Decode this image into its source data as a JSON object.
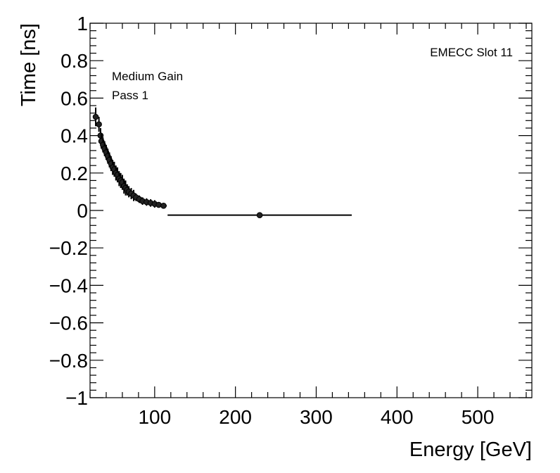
{
  "chart_data": {
    "type": "scatter",
    "title": "",
    "xlabel": "Energy [GeV]",
    "ylabel": "Time [ns]",
    "xlim": [
      20,
      567
    ],
    "ylim": [
      -1,
      1
    ],
    "xticks": [
      100,
      200,
      300,
      400,
      500
    ],
    "xtick_labels": [
      "100",
      "200",
      "300",
      "400",
      "500"
    ],
    "yticks": [
      -1,
      -0.8,
      -0.6,
      -0.4,
      -0.2,
      0,
      0.2,
      0.4,
      0.6,
      0.8,
      1
    ],
    "ytick_labels": [
      "−1",
      "−0.8",
      "−0.6",
      "−0.4",
      "−0.2",
      "0",
      "0.2",
      "0.4",
      "0.6",
      "0.8",
      "1"
    ],
    "grid": false,
    "annotations": {
      "top_right": "EMECC Slot 11",
      "line1": "Medium Gain",
      "line2": "Pass 1"
    },
    "series": [
      {
        "name": "Medium Gain Pass 1",
        "points": [
          {
            "x": 27,
            "y": 0.5,
            "xerr": 2,
            "yerr": 0.05
          },
          {
            "x": 31,
            "y": 0.46,
            "xerr": 1,
            "yerr": 0.04
          },
          {
            "x": 33,
            "y": 0.4,
            "xerr": 1,
            "yerr": 0.04
          },
          {
            "x": 34,
            "y": 0.37,
            "xerr": 1,
            "yerr": 0.04
          },
          {
            "x": 36,
            "y": 0.35,
            "xerr": 1,
            "yerr": 0.04
          },
          {
            "x": 38,
            "y": 0.33,
            "xerr": 1,
            "yerr": 0.04
          },
          {
            "x": 40,
            "y": 0.31,
            "xerr": 1,
            "yerr": 0.04
          },
          {
            "x": 42,
            "y": 0.29,
            "xerr": 1,
            "yerr": 0.04
          },
          {
            "x": 44,
            "y": 0.27,
            "xerr": 1,
            "yerr": 0.04
          },
          {
            "x": 46,
            "y": 0.25,
            "xerr": 1,
            "yerr": 0.04
          },
          {
            "x": 48,
            "y": 0.23,
            "xerr": 1,
            "yerr": 0.04
          },
          {
            "x": 50,
            "y": 0.22,
            "xerr": 1,
            "yerr": 0.04
          },
          {
            "x": 52,
            "y": 0.2,
            "xerr": 1,
            "yerr": 0.04
          },
          {
            "x": 54,
            "y": 0.19,
            "xerr": 1,
            "yerr": 0.04
          },
          {
            "x": 56,
            "y": 0.17,
            "xerr": 1,
            "yerr": 0.04
          },
          {
            "x": 58,
            "y": 0.16,
            "xerr": 1,
            "yerr": 0.04
          },
          {
            "x": 60,
            "y": 0.15,
            "xerr": 1,
            "yerr": 0.04
          },
          {
            "x": 62,
            "y": 0.13,
            "xerr": 1,
            "yerr": 0.04
          },
          {
            "x": 64,
            "y": 0.12,
            "xerr": 1,
            "yerr": 0.04
          },
          {
            "x": 66,
            "y": 0.11,
            "xerr": 1,
            "yerr": 0.03
          },
          {
            "x": 68,
            "y": 0.1,
            "xerr": 1,
            "yerr": 0.03
          },
          {
            "x": 71,
            "y": 0.09,
            "xerr": 1,
            "yerr": 0.03
          },
          {
            "x": 74,
            "y": 0.08,
            "xerr": 1,
            "yerr": 0.03
          },
          {
            "x": 77,
            "y": 0.07,
            "xerr": 1,
            "yerr": 0.02
          },
          {
            "x": 81,
            "y": 0.06,
            "xerr": 2,
            "yerr": 0.02
          },
          {
            "x": 85,
            "y": 0.05,
            "xerr": 2,
            "yerr": 0.02
          },
          {
            "x": 90,
            "y": 0.045,
            "xerr": 2,
            "yerr": 0.02
          },
          {
            "x": 95,
            "y": 0.04,
            "xerr": 2,
            "yerr": 0.02
          },
          {
            "x": 100,
            "y": 0.035,
            "xerr": 2,
            "yerr": 0.02
          },
          {
            "x": 105,
            "y": 0.03,
            "xerr": 2,
            "yerr": 0.015
          },
          {
            "x": 111,
            "y": 0.025,
            "xerr": 4,
            "yerr": 0.015
          },
          {
            "x": 230,
            "y": -0.025,
            "xerr": 114,
            "yerr": 0.005
          }
        ]
      }
    ]
  }
}
